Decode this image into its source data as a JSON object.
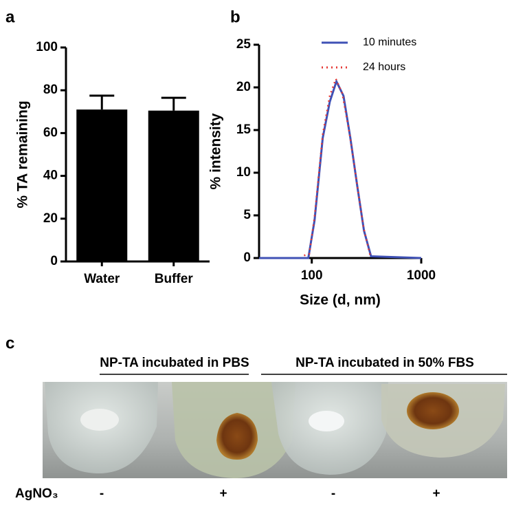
{
  "panel_labels": [
    "a",
    "b",
    "c"
  ],
  "chart_data": [
    {
      "type": "bar",
      "categories": [
        "Water",
        "Buffer"
      ],
      "values": [
        71,
        70.5
      ],
      "errors": [
        6.5,
        6
      ],
      "color": "#000000",
      "ylabel": "% TA remaining",
      "ylim": [
        0,
        100
      ],
      "yticks": [
        0,
        20,
        40,
        60,
        80,
        100
      ]
    },
    {
      "type": "line",
      "xlabel": "Size (d, nm)",
      "ylabel": "% intensity",
      "xlog": true,
      "legend": "upper right",
      "xlim": [
        33,
        1000
      ],
      "xticks": [
        100,
        1000
      ],
      "ylim": [
        0,
        25
      ],
      "yticks": [
        0,
        5,
        10,
        15,
        20,
        25
      ],
      "series": [
        {
          "name": "10 minutes",
          "color": "#3f51b5",
          "style": "solid",
          "x": [
            33,
            93,
            106,
            126,
            146,
            168,
            195,
            225,
            260,
            300,
            348,
            1000
          ],
          "values": [
            0,
            0,
            4.4,
            14.1,
            18.3,
            20.7,
            19,
            14.1,
            8.5,
            3.2,
            0.2,
            0
          ]
        },
        {
          "name": "24 hours",
          "color": "#e53935",
          "style": "dotted",
          "x": [
            85,
            95,
            106,
            126,
            146,
            166,
            190,
            222,
            258,
            298,
            340
          ],
          "values": [
            0.3,
            0.5,
            4.8,
            14.5,
            19,
            21,
            19.3,
            14.5,
            8.8,
            3.5,
            0.4
          ]
        }
      ]
    }
  ],
  "photo": {
    "groups": [
      "NP-TA incubated in PBS",
      "NP-TA incubated in 50% FBS"
    ],
    "row_label": "AgNO₃",
    "signs": [
      "-",
      "+",
      "-",
      "+"
    ]
  }
}
